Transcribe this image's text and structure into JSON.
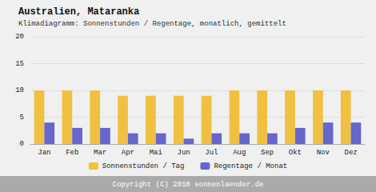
{
  "chart_data": {
    "type": "bar",
    "title": "Australien, Mataranka",
    "subtitle": "Klimadiagramm: Sonnenstunden / Regentage, monatlich, gemittelt",
    "categories": [
      "Jan",
      "Feb",
      "Mar",
      "Apr",
      "Mai",
      "Jun",
      "Jul",
      "Aug",
      "Sep",
      "Okt",
      "Nov",
      "Dez"
    ],
    "series": [
      {
        "name": "Sonnenstunden / Tag",
        "color": "#F0C040",
        "values": [
          10,
          10,
          10,
          9,
          9,
          9,
          9,
          10,
          10,
          10,
          10,
          10
        ]
      },
      {
        "name": "Regentage / Monat",
        "color": "#6666CC",
        "values": [
          4,
          3,
          3,
          2,
          2,
          1,
          2,
          2,
          2,
          3,
          4,
          4
        ]
      }
    ],
    "ylim": [
      0,
      20
    ],
    "yticks": [
      0,
      5,
      10,
      15,
      20
    ],
    "grid": true,
    "legend": "bottom",
    "annotations": [
      "Copyright (C) 2010 sonnenlaender.de"
    ]
  }
}
